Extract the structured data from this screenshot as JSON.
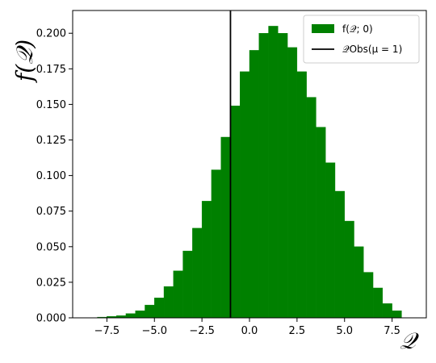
{
  "chart_data": {
    "type": "bar",
    "title": "",
    "xlabel": "𝒬",
    "ylabel": "f(𝒬)",
    "xlim": [
      -9.3,
      9.3
    ],
    "ylim": [
      0,
      0.216
    ],
    "xticks": [
      -7.5,
      -5.0,
      -2.5,
      0.0,
      2.5,
      5.0,
      7.5
    ],
    "xtick_labels": [
      "−7.5",
      "−5.0",
      "−2.5",
      "0.0",
      "2.5",
      "5.0",
      "7.5"
    ],
    "yticks": [
      0.0,
      0.025,
      0.05,
      0.075,
      0.1,
      0.125,
      0.15,
      0.175,
      0.2
    ],
    "ytick_labels": [
      "0.000",
      "0.025",
      "0.050",
      "0.075",
      "0.100",
      "0.125",
      "0.150",
      "0.175",
      "0.200"
    ],
    "grid": false,
    "legend_position": "top-right",
    "bar_color": "#008000",
    "bin_width": 0.5,
    "bin_starts": [
      -8.0,
      -7.5,
      -7.0,
      -6.5,
      -6.0,
      -5.5,
      -5.0,
      -4.5,
      -4.0,
      -3.5,
      -3.0,
      -2.5,
      -2.0,
      -1.5,
      -1.0,
      -0.5,
      0.0,
      0.5,
      1.0,
      1.5,
      2.0,
      2.5,
      3.0,
      3.5,
      4.0,
      4.5,
      5.0,
      5.5,
      6.0,
      6.5,
      7.0,
      7.5
    ],
    "values": [
      0.0005,
      0.001,
      0.0015,
      0.003,
      0.005,
      0.009,
      0.014,
      0.022,
      0.033,
      0.047,
      0.063,
      0.082,
      0.104,
      0.127,
      0.149,
      0.173,
      0.188,
      0.2,
      0.205,
      0.2,
      0.19,
      0.173,
      0.155,
      0.134,
      0.109,
      0.089,
      0.068,
      0.05,
      0.032,
      0.021,
      0.01,
      0.005
    ],
    "vline": {
      "x": -1.0,
      "color": "#000000"
    },
    "legend": [
      {
        "label": "f(𝒬; 0)",
        "kind": "patch",
        "color": "#008000"
      },
      {
        "label": "𝒬Obs(μ = 1)",
        "kind": "line",
        "color": "#000000"
      }
    ]
  }
}
